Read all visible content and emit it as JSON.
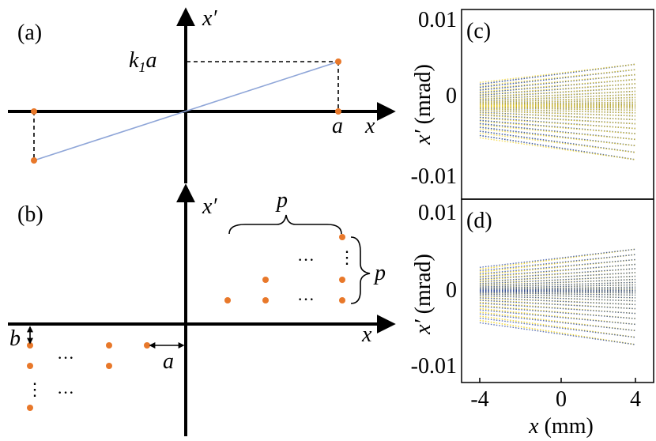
{
  "panel_a": {
    "label": "(a)",
    "axis_x": "x",
    "axis_xp": "x′",
    "k_label_k": "k",
    "k_label_sub": "1",
    "k_label_a": "a",
    "a_label": "a",
    "colors": {
      "point": "#e8782a",
      "line": "#8fa6d8",
      "axis": "#000000"
    }
  },
  "panel_b": {
    "label": "(b)",
    "axis_x": "x",
    "axis_xp": "x′",
    "p_top": "p",
    "p_right": "p",
    "b_label": "b",
    "a_label": "a",
    "ellipsis_h": "···",
    "ellipsis_v": "⋮"
  },
  "panel_c": {
    "label": "(c)",
    "ylabel_var": "x′",
    "ylabel_unit": "(mrad)",
    "yticks": [
      "0.01",
      "0",
      "-0.01"
    ],
    "colors": {
      "front": "#f2d21b",
      "back": "#1f3f8f"
    }
  },
  "panel_d": {
    "label": "(d)",
    "ylabel_var": "x′",
    "ylabel_unit": "(mrad)",
    "yticks": [
      "0.01",
      "0",
      "-0.01"
    ],
    "colors": {
      "front": "#1f3fa0",
      "back": "#f2d21b"
    }
  },
  "shared_x": {
    "xticks": [
      "-4",
      "0",
      "4"
    ],
    "xlabel_var": "x",
    "xlabel_unit": "(mm)"
  }
}
